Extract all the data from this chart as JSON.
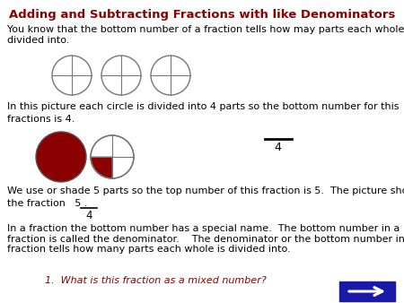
{
  "title": "Adding and Subtracting Fractions with like Denominators",
  "title_color": "#8B0000",
  "bg_color": "#FFFFFF",
  "text_color": "#000000",
  "dark_red": "#8B0000",
  "blue_btn": "#1a1aaa",
  "para1": "You know that the bottom number of a fraction tells how may parts each whole is\ndivided into.",
  "para2_line1": "In this picture each circle is divided into 4 parts so the bottom number for this",
  "para2_line2": "fractions is 4.",
  "para3_line1": "We use or shade 5 parts so the top number of this fraction is 5.  The picture shows",
  "para3_line2": "the fraction   5 .",
  "para4": "In a fraction the bottom number has a special name.  The bottom number in a\nfraction is called the denominator.    The denominator or the bottom number in a\nfraction tells how many parts each whole is divided into.",
  "para5": "1.  What is this fraction as a mixed number?",
  "fig_w": 4.5,
  "fig_h": 3.38,
  "dpi": 100
}
